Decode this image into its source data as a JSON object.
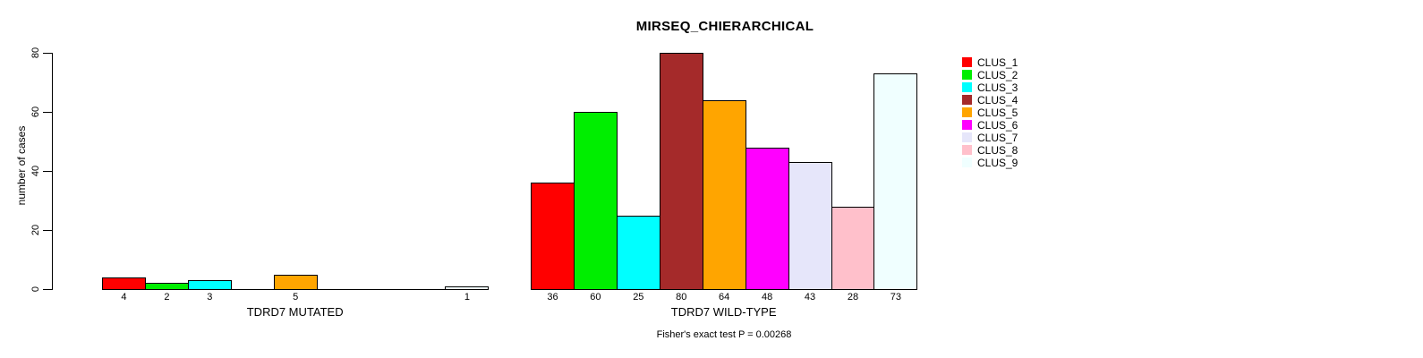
{
  "figure": {
    "title": "MIRSEQ_CHIERARCHICAL",
    "annotation": "Fisher's exact test P = 0.00268"
  },
  "chart_data": {
    "type": "bar",
    "title": "MIRSEQ_CHIERARCHICAL",
    "xlabel": "",
    "ylabel": "number of cases",
    "ylim": [
      0,
      80
    ],
    "yticks": [
      0,
      20,
      40,
      60,
      80
    ],
    "grid": false,
    "legend_position": "top-right",
    "bar_value_labels": true,
    "annotation": "Fisher's exact test P = 0.00268",
    "categories": [
      "TDRD7 MUTATED",
      "TDRD7 WILD-TYPE"
    ],
    "series": [
      {
        "name": "CLUS_1",
        "color": "#FF0000",
        "values": [
          4,
          36
        ]
      },
      {
        "name": "CLUS_2",
        "color": "#00EE00",
        "values": [
          2,
          60
        ]
      },
      {
        "name": "CLUS_3",
        "color": "#00FFFF",
        "values": [
          3,
          25
        ]
      },
      {
        "name": "CLUS_4",
        "color": "#A52A2A",
        "values": [
          0,
          80
        ]
      },
      {
        "name": "CLUS_5",
        "color": "#FFA500",
        "values": [
          5,
          64
        ]
      },
      {
        "name": "CLUS_6",
        "color": "#FF00FF",
        "values": [
          0,
          48
        ]
      },
      {
        "name": "CLUS_7",
        "color": "#E6E6FA",
        "values": [
          0,
          43
        ]
      },
      {
        "name": "CLUS_8",
        "color": "#FFC0CB",
        "values": [
          0,
          28
        ]
      },
      {
        "name": "CLUS_9",
        "color": "#F0FFFF",
        "values": [
          1,
          73
        ]
      }
    ]
  }
}
